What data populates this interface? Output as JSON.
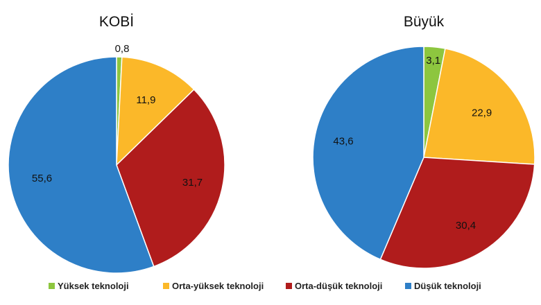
{
  "chart_data": {
    "type": "pie",
    "categories": [
      "Yüksek teknoloji",
      "Orta-yüksek teknoloji",
      "Orta-düşük teknoloji",
      "Düşük teknoloji"
    ],
    "colors": [
      "#8dc63f",
      "#fbb829",
      "#b01c1c",
      "#2e7fc7"
    ],
    "pies": [
      {
        "title": "KOBİ",
        "values": [
          0.8,
          11.9,
          31.7,
          55.6
        ]
      },
      {
        "title": "Büyük",
        "values": [
          3.1,
          22.9,
          30.4,
          43.6
        ]
      }
    ],
    "legend_position": "bottom"
  }
}
